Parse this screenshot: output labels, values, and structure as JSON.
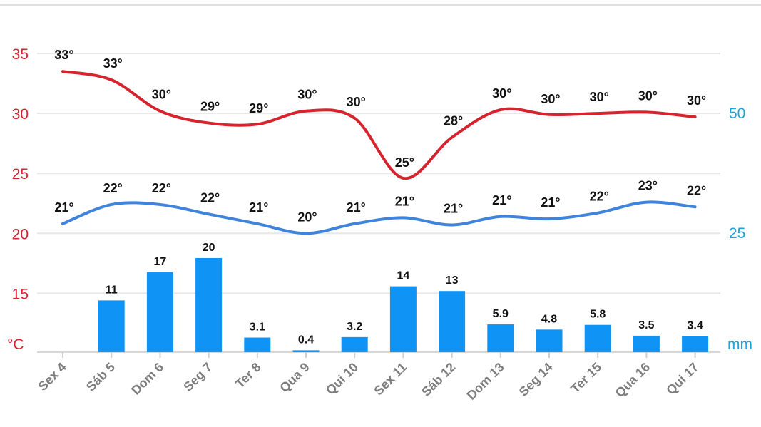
{
  "colors": {
    "max_line": "#d6242e",
    "min_line": "#3f83dc",
    "bars": "#0f93f5",
    "left_axis": "#d6242e",
    "right_axis": "#1aa3dd",
    "grid": "#e8e8e8",
    "tick_label": "#7d7d7d"
  },
  "chart_data": {
    "type": "bar+line",
    "categories": [
      "Sex 4",
      "Sáb 5",
      "Dom 6",
      "Seg 7",
      "Ter 8",
      "Qua 9",
      "Qui 10",
      "Sex 11",
      "Sáb 12",
      "Dom 13",
      "Seg 14",
      "Ter 15",
      "Qua 16",
      "Qui 17"
    ],
    "series": [
      {
        "kind": "line",
        "axis": "left",
        "values": [
          33.5,
          32.8,
          30.2,
          29.2,
          29.1,
          30.2,
          29.6,
          24.6,
          28.0,
          30.3,
          29.9,
          30.0,
          30.1,
          29.7
        ],
        "labels": [
          "33°",
          "33°",
          "30°",
          "29°",
          "29°",
          "30°",
          "30°",
          "25°",
          "28°",
          "30°",
          "30°",
          "30°",
          "30°",
          "30°"
        ]
      },
      {
        "kind": "line",
        "axis": "left",
        "values": [
          20.8,
          22.4,
          22.4,
          21.6,
          20.8,
          20.0,
          20.8,
          21.3,
          20.7,
          21.4,
          21.2,
          21.7,
          22.6,
          22.2
        ],
        "labels": [
          "21°",
          "22°",
          "22°",
          "22°",
          "21°",
          "20°",
          "21°",
          "21°",
          "21°",
          "21°",
          "21°",
          "22°",
          "23°",
          "22°"
        ]
      },
      {
        "kind": "bar",
        "axis": "right",
        "values": [
          0,
          11,
          17,
          20,
          3.1,
          0.4,
          3.2,
          14,
          13,
          5.9,
          4.8,
          5.8,
          3.5,
          3.4
        ],
        "labels": [
          "",
          "11",
          "17",
          "20",
          "3.1",
          "0.4",
          "3.2",
          "14",
          "13",
          "5.9",
          "4.8",
          "5.8",
          "3.5",
          "3.4"
        ]
      }
    ],
    "left_axis": {
      "unit": "°C",
      "ticks": [
        "35",
        "30",
        "25",
        "20",
        "15"
      ],
      "range": [
        12.5,
        37.5
      ]
    },
    "right_axis": {
      "unit": "mm",
      "ticks": [
        "50",
        "25"
      ],
      "note": "bar heights follow the plotted bars"
    },
    "grid": true
  }
}
